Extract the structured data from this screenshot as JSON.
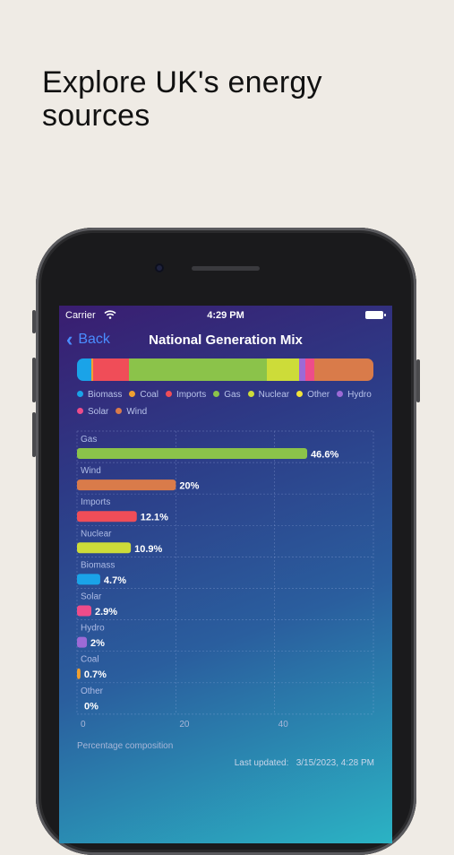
{
  "headline": "Explore UK's energy sources",
  "status_bar": {
    "carrier": "Carrier",
    "time": "4:29 PM"
  },
  "nav": {
    "back_label": "Back",
    "title": "National Generation Mix"
  },
  "mix_bar": {
    "segments": [
      {
        "source": "Biomass",
        "value": 4.7,
        "color": "#1aa3e8"
      },
      {
        "source": "Coal",
        "value": 0.7,
        "color": "#f0a030"
      },
      {
        "source": "Imports",
        "value": 12.1,
        "color": "#f04d58"
      },
      {
        "source": "Gas",
        "value": 46.6,
        "color": "#8bc34a"
      },
      {
        "source": "Nuclear",
        "value": 10.9,
        "color": "#cddc39"
      },
      {
        "source": "Other",
        "value": 0,
        "color": "#f2e33a"
      },
      {
        "source": "Hydro",
        "value": 2,
        "color": "#9c6ad6"
      },
      {
        "source": "Solar",
        "value": 2.9,
        "color": "#ee4c8a"
      },
      {
        "source": "Wind",
        "value": 20,
        "color": "#d97b4a"
      }
    ]
  },
  "legend": [
    {
      "label": "Biomass",
      "color": "#1aa3e8"
    },
    {
      "label": "Coal",
      "color": "#f0a030"
    },
    {
      "label": "Imports",
      "color": "#f04d58"
    },
    {
      "label": "Gas",
      "color": "#8bc34a"
    },
    {
      "label": "Nuclear",
      "color": "#cddc39"
    },
    {
      "label": "Other",
      "color": "#f2e33a"
    },
    {
      "label": "Hydro",
      "color": "#9c6ad6"
    },
    {
      "label": "Solar",
      "color": "#ee4c8a"
    },
    {
      "label": "Wind",
      "color": "#d97b4a"
    }
  ],
  "chart_data": {
    "type": "bar",
    "orientation": "horizontal",
    "categories": [
      "Gas",
      "Wind",
      "Imports",
      "Nuclear",
      "Biomass",
      "Solar",
      "Hydro",
      "Coal",
      "Other"
    ],
    "values": [
      46.6,
      20,
      12.1,
      10.9,
      4.7,
      2.9,
      2,
      0.7,
      0
    ],
    "value_labels": [
      "46.6%",
      "20%",
      "12.1%",
      "10.9%",
      "4.7%",
      "2.9%",
      "2%",
      "0.7%",
      "0%"
    ],
    "colors": [
      "#8bc34a",
      "#d97b4a",
      "#f04d58",
      "#cddc39",
      "#1aa3e8",
      "#ee4c8a",
      "#9c6ad6",
      "#f0a030",
      "#f2e33a"
    ],
    "xticks": [
      "0",
      "20",
      "40"
    ],
    "xlim": [
      0,
      60
    ],
    "xlabel": "Percentage composition",
    "grid": true
  },
  "footer": {
    "updated_prefix": "Last updated:",
    "updated_value": "3/15/2023, 4:28 PM"
  }
}
